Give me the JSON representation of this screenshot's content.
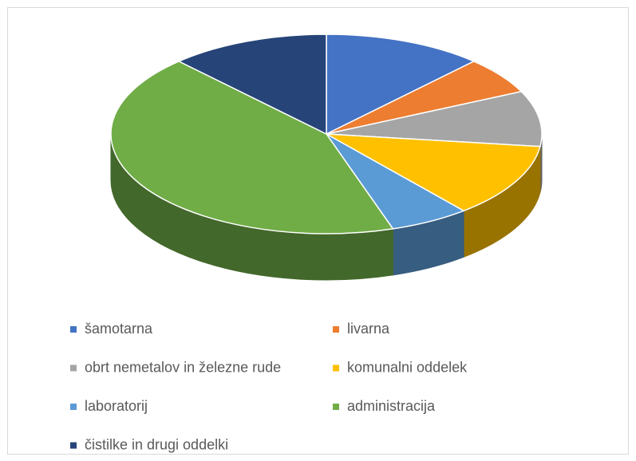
{
  "chart_data": {
    "type": "pie",
    "categories": [
      "šamotarna",
      "livarna",
      "obrt nemetalov in železne rude",
      "komunalni oddelek",
      "laboratorij",
      "administracija",
      "čistilke in drugi oddelki"
    ],
    "values": [
      12,
      6,
      9,
      12,
      6,
      43,
      12
    ],
    "colors": [
      "#4472c4",
      "#ed7d31",
      "#a5a5a5",
      "#ffc000",
      "#5b9bd5",
      "#70ad47",
      "#264478"
    ],
    "legend": "bottom"
  }
}
